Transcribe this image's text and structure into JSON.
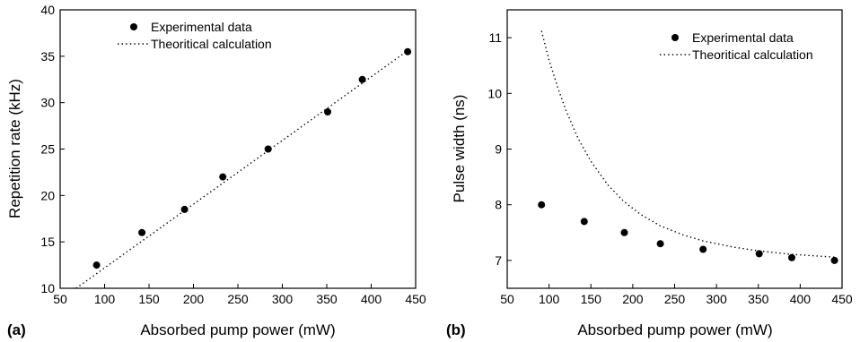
{
  "chart_data": [
    {
      "type": "scatter",
      "panel_label": "(a)",
      "xlabel": "Absorbed pump power (mW)",
      "ylabel": "Repetition rate (kHz)",
      "xlim": [
        50,
        450
      ],
      "ylim": [
        10,
        40
      ],
      "xticks": [
        "50",
        "100",
        "150",
        "200",
        "250",
        "300",
        "350",
        "400",
        "450"
      ],
      "yticks": [
        "10",
        "15",
        "20",
        "25",
        "30",
        "35",
        "40"
      ],
      "grid": false,
      "legend_position": "top-left",
      "series": [
        {
          "name": "Experimental data",
          "style": "markers",
          "x": [
            91,
            142,
            190,
            233,
            284,
            351,
            390,
            441
          ],
          "y": [
            12.5,
            16.0,
            18.5,
            22.0,
            25.0,
            29.0,
            32.5,
            35.5
          ]
        },
        {
          "name": "Theoritical calculation",
          "style": "dotted",
          "x": [
            68,
            441
          ],
          "y": [
            10.0,
            35.6
          ]
        }
      ]
    },
    {
      "type": "scatter",
      "panel_label": "(b)",
      "xlabel": "Absorbed pump power (mW)",
      "ylabel": "Pulse width (ns)",
      "xlim": [
        50,
        450
      ],
      "ylim": [
        6.5,
        11.5
      ],
      "xticks": [
        "50",
        "100",
        "150",
        "200",
        "250",
        "300",
        "350",
        "400",
        "450"
      ],
      "yticks": [
        "7",
        "8",
        "9",
        "10",
        "11"
      ],
      "grid": false,
      "legend_position": "top-right",
      "series": [
        {
          "name": "Experimental data",
          "style": "markers",
          "x": [
            91,
            142,
            190,
            233,
            284,
            351,
            390,
            441
          ],
          "y": [
            8.0,
            7.7,
            7.5,
            7.3,
            7.2,
            7.12,
            7.05,
            7.0
          ]
        },
        {
          "name": "Theoritical calculation",
          "style": "dotted",
          "x": [
            91,
            100,
            110,
            120,
            135,
            150,
            170,
            190,
            210,
            233,
            260,
            284,
            320,
            351,
            390,
            441
          ],
          "y": [
            11.12,
            10.6,
            10.12,
            9.7,
            9.18,
            8.78,
            8.36,
            8.05,
            7.82,
            7.62,
            7.46,
            7.35,
            7.24,
            7.17,
            7.11,
            7.06
          ]
        }
      ]
    }
  ]
}
